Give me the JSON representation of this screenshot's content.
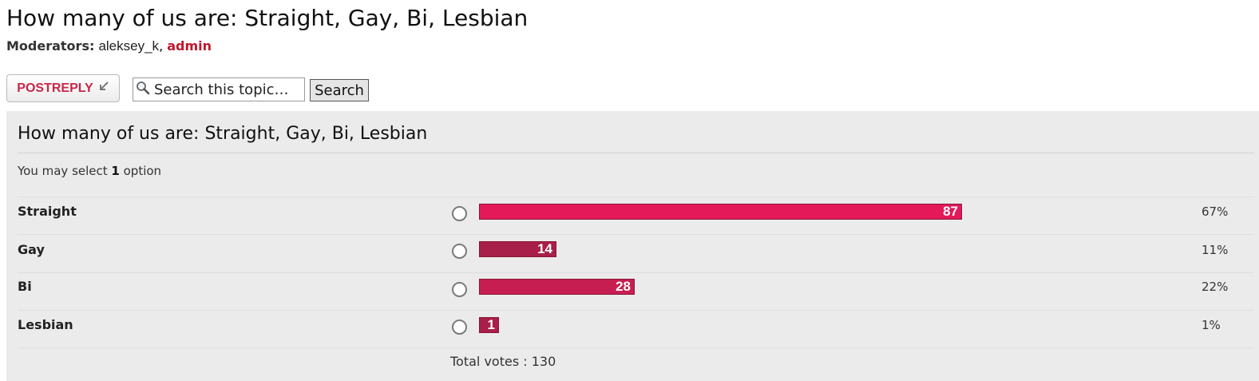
{
  "topic": {
    "title": "How many of us are: Straight, Gay, Bi, Lesbian"
  },
  "moderators": {
    "label": "Moderators:",
    "users": [
      {
        "name": "aleksey_k",
        "separator": ", "
      },
      {
        "name": "admin",
        "separator": ""
      }
    ]
  },
  "actions": {
    "post_reply": "POSTREPLY",
    "search_placeholder": "Search this topic…",
    "search_button": "Search"
  },
  "poll": {
    "title": "How many of us are: Straight, Gay, Bi, Lesbian",
    "select_prefix": "You may select ",
    "select_count": "1",
    "select_suffix": " option",
    "options": [
      {
        "label": "Straight",
        "votes": 87,
        "percent_label": "67%",
        "color": "#e3195a"
      },
      {
        "label": "Gay",
        "votes": 14,
        "percent_label": "11%",
        "color": "#a81f49"
      },
      {
        "label": "Bi",
        "votes": 28,
        "percent_label": "22%",
        "color": "#c71e51"
      },
      {
        "label": "Lesbian",
        "votes": 1,
        "percent_label": "1%",
        "color": "#a81f49"
      }
    ],
    "total_text": "Total votes : 130"
  },
  "colors": {
    "admin": "#c0162b",
    "post_reply_text": "#c8264a",
    "panel_bg": "#ebebeb"
  }
}
